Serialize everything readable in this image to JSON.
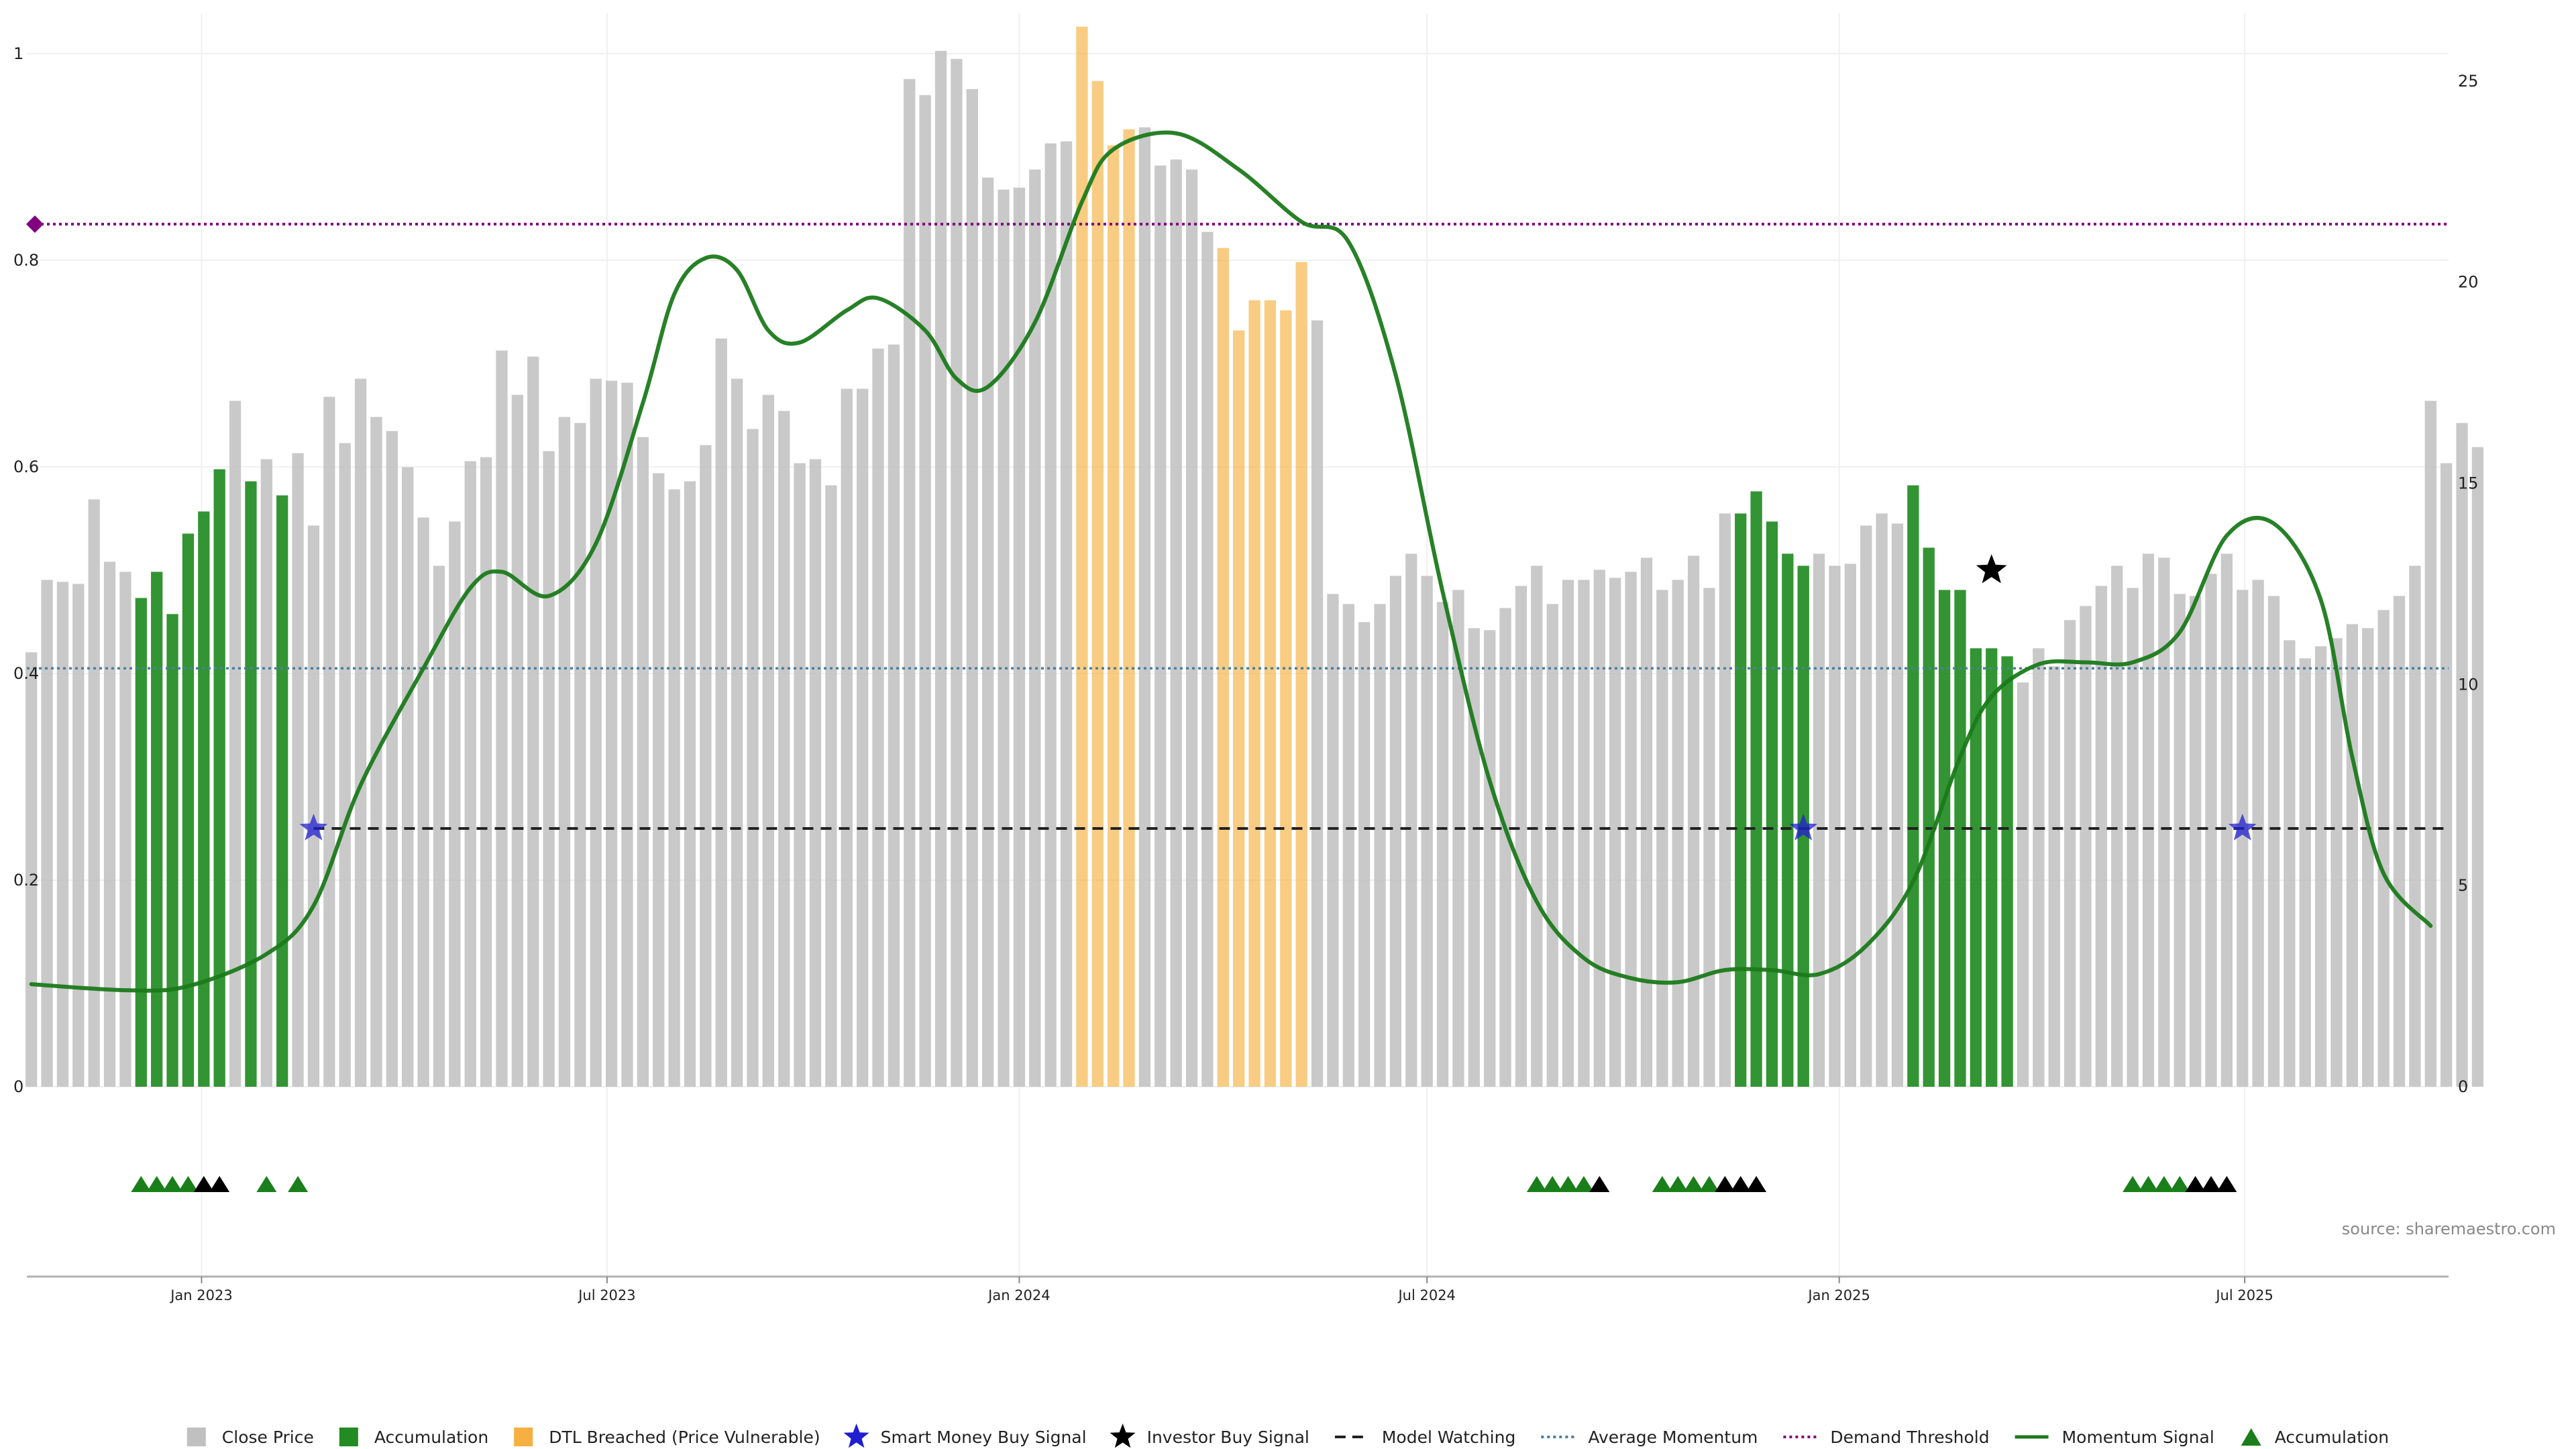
{
  "chart_data": {
    "type": "bar",
    "title": "",
    "source_text": "source: sharemaestro.com",
    "left_axis": {
      "ylim": [
        0,
        1
      ],
      "ticks": [
        "0",
        "0.2",
        "0.4",
        "0.6",
        "0.8",
        "1"
      ]
    },
    "right_axis": {
      "ylim": [
        0,
        25.68
      ],
      "ticks": [
        "0",
        "5",
        "10",
        "15",
        "20",
        "25"
      ]
    },
    "x_axis": {
      "start": "2022-10-15",
      "end": "2025-09-30",
      "ticks": [
        {
          "date": "2023-01-01",
          "label": "Jan 2023"
        },
        {
          "date": "2023-07-01",
          "label": "Jul 2023"
        },
        {
          "date": "2024-01-01",
          "label": "Jan 2024"
        },
        {
          "date": "2024-07-01",
          "label": "Jul 2024"
        },
        {
          "date": "2025-01-01",
          "label": "Jan 2025"
        },
        {
          "date": "2025-07-01",
          "label": "Jul 2025"
        }
      ]
    },
    "grid": true,
    "legend_position": "bottom",
    "colors": {
      "close": "#c0c0c0",
      "accumulation": "#228b22",
      "dtl": "#f5b041",
      "smart_money": "#1f1fd0",
      "investor": "#000000",
      "model_watching": "#222222",
      "average_momentum": "#4a7fa0",
      "demand_threshold": "#800080",
      "momentum": "#1b7a1b",
      "marker_accumulation": "#1a7f1a"
    },
    "bars": {
      "first_week": "2022-10-17",
      "step_days": 7,
      "values": [
        10.8,
        12.6,
        12.55,
        12.5,
        14.6,
        13.05,
        12.8,
        12.15,
        12.8,
        11.75,
        13.75,
        14.3,
        15.35,
        17.05,
        15.05,
        15.6,
        14.7,
        15.75,
        13.95,
        17.15,
        16.0,
        17.6,
        16.65,
        16.3,
        15.4,
        14.15,
        12.95,
        14.05,
        15.55,
        15.65,
        18.3,
        17.2,
        18.15,
        15.8,
        16.65,
        16.5,
        17.6,
        17.55,
        17.5,
        16.15,
        15.25,
        14.85,
        15.05,
        15.95,
        18.6,
        17.6,
        16.35,
        17.2,
        16.8,
        15.5,
        15.6,
        14.95,
        17.35,
        17.35,
        18.35,
        18.45,
        25.05,
        24.65,
        25.75,
        25.55,
        24.8,
        22.6,
        22.3,
        22.35,
        22.8,
        23.45,
        23.5,
        26.35,
        25.0,
        23.4,
        23.8,
        23.85,
        22.9,
        23.05,
        22.8,
        21.25,
        20.85,
        18.8,
        19.55,
        19.55,
        19.3,
        20.5,
        19.05,
        12.25,
        12.0,
        11.55,
        12.0,
        12.7,
        13.25,
        12.7,
        12.05,
        12.35,
        11.4,
        11.35,
        11.9,
        12.45,
        12.95,
        12.0,
        12.6,
        12.6,
        12.85,
        12.65,
        12.8,
        13.15,
        12.35,
        12.6,
        13.2,
        12.4,
        14.25,
        14.25,
        14.8,
        14.05,
        13.25,
        12.95,
        13.25,
        12.95,
        13.0,
        13.95,
        14.25,
        14.0,
        14.95,
        13.4,
        12.35,
        12.35,
        10.9,
        10.9,
        10.7,
        10.05,
        10.9,
        10.45,
        11.6,
        11.95,
        12.45,
        12.95,
        12.4,
        13.25,
        13.15,
        12.25,
        12.2,
        12.75,
        13.25,
        12.35,
        12.6,
        12.2,
        11.1,
        10.65,
        10.95,
        11.15,
        11.5,
        11.4,
        11.85,
        12.2,
        12.95,
        17.05,
        15.5,
        16.5,
        15.9
      ],
      "categories": "ccccccc[[[[[[c[c[ccccccccccccccccccccccccccccccccccccccccccccccccccddddcccccddddddccccccccccccccccccccccccccc[[[[[cccccc[[[[[[[cccccccccccccccccccccccccccccccccccccccc[[[[[[[cccccccccccccccccc"
    },
    "momentum_signal": {
      "x": [
        "2022-10-17",
        "2022-11-28",
        "2022-12-26",
        "2023-01-30",
        "2023-02-20",
        "2023-03-13",
        "2023-04-10",
        "2023-05-01",
        "2023-05-15",
        "2023-06-05",
        "2023-06-26",
        "2023-07-17",
        "2023-07-31",
        "2023-08-14",
        "2023-08-28",
        "2023-09-11",
        "2023-09-25",
        "2023-10-16",
        "2023-10-30",
        "2023-11-20",
        "2023-12-04",
        "2023-12-18",
        "2024-01-08",
        "2024-01-29",
        "2024-02-12",
        "2024-03-11",
        "2024-04-08",
        "2024-05-06",
        "2024-05-27",
        "2024-06-17",
        "2024-07-08",
        "2024-07-29",
        "2024-08-19",
        "2024-09-09",
        "2024-09-30",
        "2024-10-21",
        "2024-11-11",
        "2024-12-02",
        "2024-12-23",
        "2025-01-13",
        "2025-02-03",
        "2025-02-24",
        "2025-03-10",
        "2025-03-31",
        "2025-04-21",
        "2025-05-12",
        "2025-06-02",
        "2025-06-23",
        "2025-07-14",
        "2025-08-04",
        "2025-08-18",
        "2025-09-01",
        "2025-09-22"
      ],
      "y": [
        2.55,
        2.4,
        2.5,
        3.3,
        4.5,
        7.5,
        10.4,
        12.4,
        12.8,
        12.2,
        13.5,
        17.0,
        19.7,
        20.6,
        20.3,
        18.8,
        18.5,
        19.3,
        19.6,
        18.8,
        17.6,
        17.4,
        19.0,
        22.0,
        23.3,
        23.7,
        22.8,
        21.5,
        21.0,
        17.7,
        12.3,
        7.6,
        4.6,
        3.2,
        2.7,
        2.6,
        2.9,
        2.9,
        2.8,
        3.5,
        5.1,
        8.2,
        9.7,
        10.5,
        10.55,
        10.55,
        11.3,
        13.7,
        14.0,
        12.1,
        8.2,
        5.3,
        4.0
      ]
    },
    "model_watching": {
      "value": 0.25,
      "from": "2023-02-20",
      "to": "2025-09-29"
    },
    "average_momentum": {
      "value": 0.405
    },
    "demand_threshold": {
      "value": 0.835
    },
    "smart_money_signals": [
      {
        "date": "2023-02-20",
        "value": 0.25
      },
      {
        "date": "2024-12-16",
        "value": 0.25
      },
      {
        "date": "2025-06-30",
        "value": 0.25
      }
    ],
    "investor_signals": [
      {
        "date": "2025-03-10",
        "value": 0.5
      }
    ],
    "markers": [
      {
        "date": "2022-12-05",
        "kind": "accumulation"
      },
      {
        "date": "2022-12-12",
        "kind": "accumulation"
      },
      {
        "date": "2022-12-19",
        "kind": "accumulation"
      },
      {
        "date": "2022-12-26",
        "kind": "accumulation"
      },
      {
        "date": "2023-01-02",
        "kind": "investor"
      },
      {
        "date": "2023-01-09",
        "kind": "investor"
      },
      {
        "date": "2023-01-30",
        "kind": "accumulation"
      },
      {
        "date": "2023-02-13",
        "kind": "accumulation"
      },
      {
        "date": "2024-08-19",
        "kind": "accumulation"
      },
      {
        "date": "2024-08-26",
        "kind": "accumulation"
      },
      {
        "date": "2024-09-02",
        "kind": "accumulation"
      },
      {
        "date": "2024-09-09",
        "kind": "accumulation"
      },
      {
        "date": "2024-09-16",
        "kind": "investor"
      },
      {
        "date": "2024-10-14",
        "kind": "accumulation"
      },
      {
        "date": "2024-10-21",
        "kind": "accumulation"
      },
      {
        "date": "2024-10-28",
        "kind": "accumulation"
      },
      {
        "date": "2024-11-04",
        "kind": "accumulation"
      },
      {
        "date": "2024-11-11",
        "kind": "investor"
      },
      {
        "date": "2024-11-18",
        "kind": "investor"
      },
      {
        "date": "2024-11-25",
        "kind": "investor"
      },
      {
        "date": "2025-05-12",
        "kind": "accumulation"
      },
      {
        "date": "2025-05-19",
        "kind": "accumulation"
      },
      {
        "date": "2025-05-26",
        "kind": "accumulation"
      },
      {
        "date": "2025-06-02",
        "kind": "accumulation"
      },
      {
        "date": "2025-06-09",
        "kind": "investor"
      },
      {
        "date": "2025-06-16",
        "kind": "investor"
      },
      {
        "date": "2025-06-23",
        "kind": "investor"
      }
    ],
    "legend": [
      {
        "label": "Close Price",
        "symbol": "square",
        "color": "#c0c0c0"
      },
      {
        "label": "Accumulation",
        "symbol": "square",
        "color": "#228b22"
      },
      {
        "label": "DTL Breached (Price Vulnerable)",
        "symbol": "square",
        "color": "#f5b041"
      },
      {
        "label": "Smart Money Buy Signal",
        "symbol": "star",
        "color": "#1f1fd0"
      },
      {
        "label": "Investor Buy Signal",
        "symbol": "star",
        "color": "#000000"
      },
      {
        "label": "Model Watching",
        "symbol": "dash",
        "color": "#222222"
      },
      {
        "label": "Average Momentum",
        "symbol": "dot-line",
        "color": "#4a7fa0"
      },
      {
        "label": "Demand Threshold",
        "symbol": "dot-line",
        "color": "#800080"
      },
      {
        "label": "Momentum Signal",
        "symbol": "line",
        "color": "#1b7a1b"
      },
      {
        "label": "Accumulation",
        "symbol": "triangle",
        "color": "#1a7f1a"
      }
    ]
  }
}
